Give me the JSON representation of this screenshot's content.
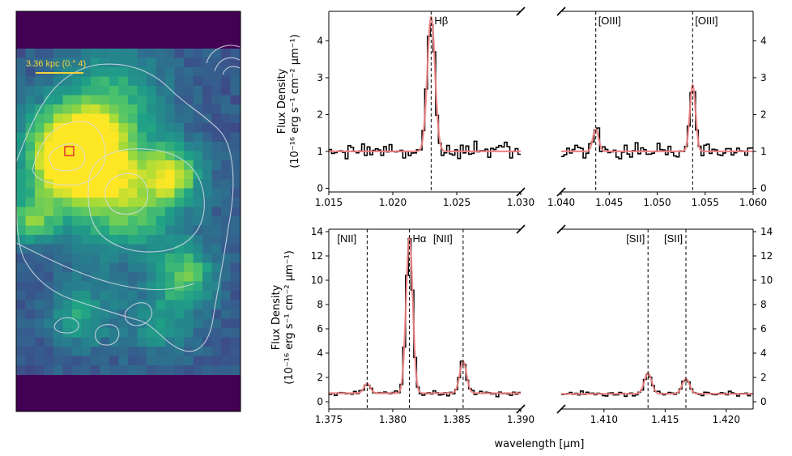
{
  "image_panel": {
    "scale_label": "3.36 kpc (0.″ 4)",
    "colors": {
      "scale_bar": "#f5d33b",
      "marker": "#e03030",
      "background": "#440154",
      "contour": "#d9dde8"
    }
  },
  "chart_data": [
    {
      "type": "line",
      "name": "hbeta",
      "xlim": [
        1.015,
        1.03
      ],
      "ylim": [
        -0.1,
        4.8
      ],
      "xticks": [
        1.015,
        1.02,
        1.025,
        1.03
      ],
      "xticklabels": [
        "1.015",
        "1.020",
        "1.025",
        "1.030"
      ],
      "yticks": [
        0,
        1,
        2,
        3,
        4
      ],
      "yticklabels": [
        "0",
        "1",
        "2",
        "3",
        "4"
      ],
      "continuum": 1.0,
      "lines": [
        {
          "label": "Hβ",
          "x": 1.023,
          "amp": 3.65,
          "sigma": 0.0003
        }
      ],
      "noise": 0.16,
      "seed": 3
    },
    {
      "type": "line",
      "name": "oiii",
      "xlim": [
        1.04,
        1.06
      ],
      "ylim": [
        -0.1,
        4.8
      ],
      "xticks": [
        1.04,
        1.045,
        1.05,
        1.055,
        1.06
      ],
      "xticklabels": [
        "1.040",
        "1.045",
        "1.050",
        "1.055",
        "1.060"
      ],
      "yticks": [
        0,
        1,
        2,
        3,
        4
      ],
      "yticklabels": [
        "0",
        "1",
        "2",
        "3",
        "4"
      ],
      "continuum": 1.0,
      "lines": [
        {
          "label": "[OIII]",
          "x": 1.0436,
          "amp": 0.6,
          "sigma": 0.0003
        },
        {
          "label": "[OIII]",
          "x": 1.0537,
          "amp": 1.8,
          "sigma": 0.0003
        }
      ],
      "noise": 0.14,
      "seed": 11
    },
    {
      "type": "line",
      "name": "halpha",
      "xlim": [
        1.375,
        1.39
      ],
      "ylim": [
        -0.6,
        14.2
      ],
      "xticks": [
        1.375,
        1.38,
        1.385,
        1.39
      ],
      "xticklabels": [
        "1.375",
        "1.380",
        "1.385",
        "1.390"
      ],
      "yticks": [
        0,
        2,
        4,
        6,
        8,
        10,
        12,
        14
      ],
      "yticklabels": [
        "0",
        "2",
        "4",
        "6",
        "8",
        "10",
        "12",
        "14"
      ],
      "continuum": 0.7,
      "lines": [
        {
          "label": "[NII]",
          "x": 1.378,
          "amp": 0.8,
          "sigma": 0.00025
        },
        {
          "label": "Hα",
          "x": 1.3813,
          "amp": 12.8,
          "sigma": 0.00026
        },
        {
          "label": "[NII]",
          "x": 1.3855,
          "amp": 2.6,
          "sigma": 0.00027
        }
      ],
      "noise": 0.14,
      "seed": 21
    },
    {
      "type": "line",
      "name": "sii",
      "xlim": [
        1.4065,
        1.4222
      ],
      "ylim": [
        -0.6,
        14.2
      ],
      "xticks": [
        1.41,
        1.415,
        1.42
      ],
      "xticklabels": [
        "1.410",
        "1.415",
        "1.420"
      ],
      "yticks": [
        0,
        2,
        4,
        6,
        8,
        10,
        12,
        14
      ],
      "yticklabels": [
        "0",
        "2",
        "4",
        "6",
        "8",
        "10",
        "12",
        "14"
      ],
      "continuum": 0.65,
      "lines": [
        {
          "label": "[SII]",
          "x": 1.4136,
          "amp": 1.7,
          "sigma": 0.0003
        },
        {
          "label": "[SII]",
          "x": 1.4167,
          "amp": 1.25,
          "sigma": 0.0003
        }
      ],
      "noise": 0.12,
      "seed": 33
    }
  ],
  "ylabel_line1": "Flux Density",
  "ylabel_line2": "(10⁻¹⁶ erg s⁻¹ cm⁻² μm⁻¹)",
  "xlabel": "wavelength [μm]",
  "colors": {
    "observed": "#000000",
    "model": "#f07f7f"
  }
}
